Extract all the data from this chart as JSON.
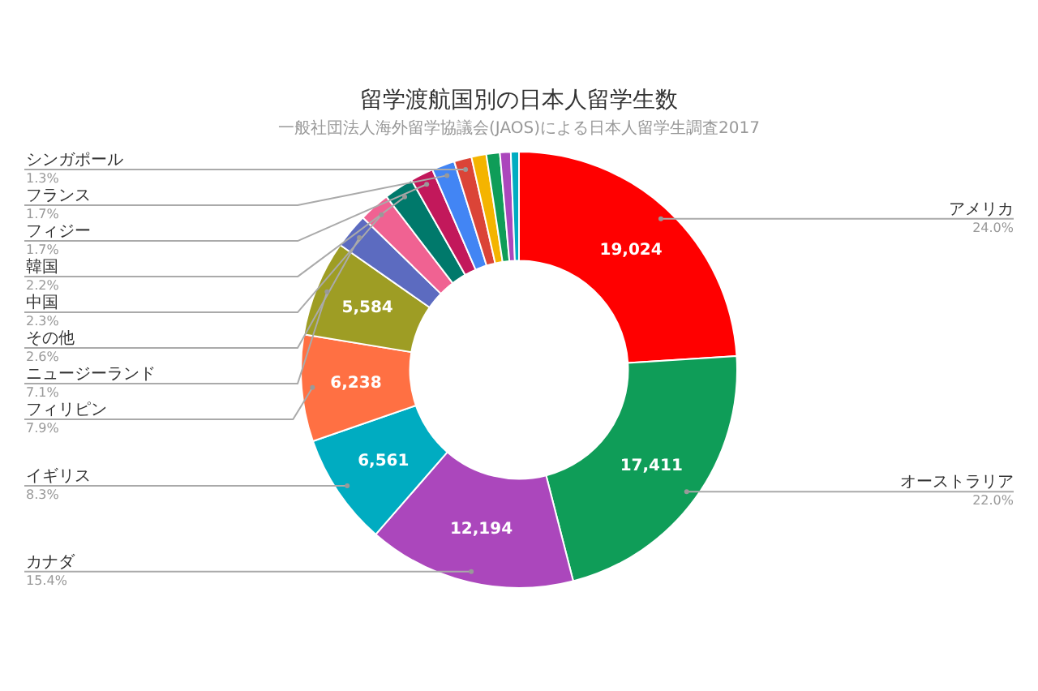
{
  "chart_data": {
    "type": "donut",
    "title": "留学渡航国別の日本人留学生数",
    "subtitle": "一般社団法人海外留学協議会(JAOS)による日本人留学生調査2017",
    "categories": [
      "アメリカ",
      "オーストラリア",
      "カナダ",
      "イギリス",
      "フィリピン",
      "ニュージーランド",
      "その他",
      "中国",
      "韓国",
      "フィジー",
      "フランス",
      "シンガポール",
      null,
      null,
      null,
      null
    ],
    "values": [
      24.0,
      22.0,
      15.4,
      8.3,
      7.9,
      7.1,
      2.6,
      2.3,
      2.2,
      1.7,
      1.7,
      1.3,
      1.1,
      1.0,
      0.8,
      0.6
    ],
    "colors": [
      "#ff0000",
      "#0f9d58",
      "#ab47bc",
      "#00acc1",
      "#ff7043",
      "#9e9d24",
      "#5c6bc0",
      "#f06292",
      "#00796b",
      "#c2185b",
      "#4285f4",
      "#db4437",
      "#f4b400",
      "#0f9d58",
      "#ab47bc",
      "#00acc1"
    ],
    "value_labels": [
      "24.0%",
      "22.0%",
      "15.4%",
      "8.3%",
      "7.9%",
      "7.1%",
      "2.6%",
      "2.3%",
      "2.2%",
      "1.7%",
      "1.7%",
      "1.3%",
      null,
      null,
      null,
      null
    ],
    "annotations": [
      {
        "text": "19,024",
        "x": "アメリカ"
      },
      {
        "text": "17,411",
        "x": "オーストラリア"
      },
      {
        "text": "12,194",
        "x": "カナダ"
      },
      {
        "text": "6,561",
        "x": "イギリス"
      },
      {
        "text": "6,238",
        "x": "フィリピン"
      },
      {
        "text": "5,584",
        "x": "ニュージーランド"
      }
    ]
  }
}
